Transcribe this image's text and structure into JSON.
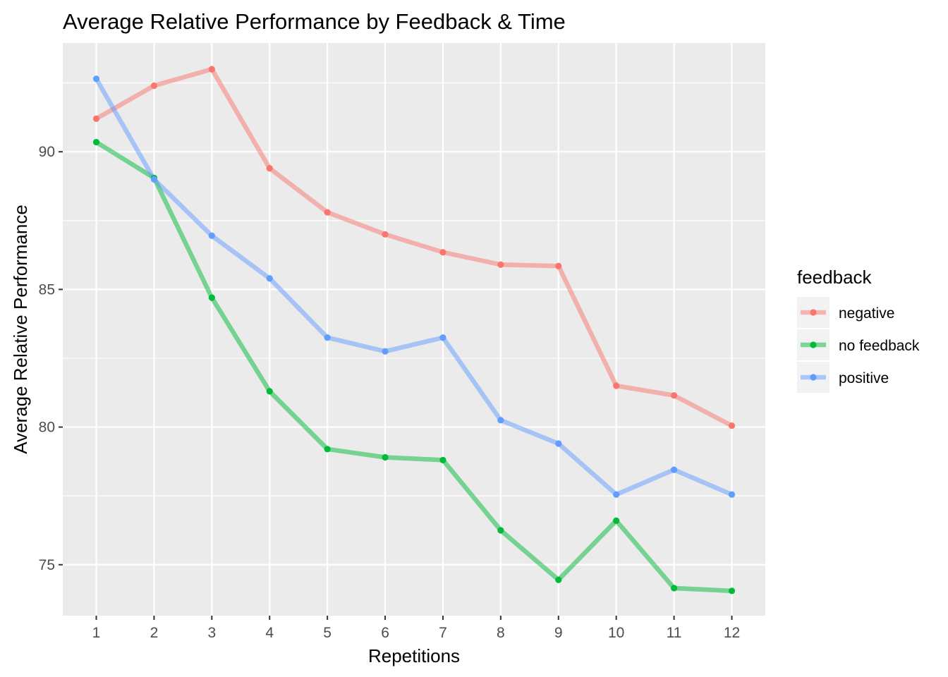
{
  "chart_data": {
    "type": "line",
    "title": "Average Relative Performance by Feedback & Time",
    "xlabel": "Repetitions",
    "ylabel": "Average Relative Performance",
    "x": [
      1,
      2,
      3,
      4,
      5,
      6,
      7,
      8,
      9,
      10,
      11,
      12
    ],
    "x_tick_labels": [
      "1",
      "2",
      "3",
      "4",
      "5",
      "6",
      "7",
      "8",
      "9",
      "10",
      "11",
      "12"
    ],
    "xlim": [
      0.42,
      12.58
    ],
    "ylim": [
      73.15,
      93.95
    ],
    "y_ticks": [
      75,
      80,
      85,
      90
    ],
    "y_tick_labels": [
      "75",
      "80",
      "85",
      "90"
    ],
    "grid": true,
    "legend": {
      "title": "feedback",
      "position": "right"
    },
    "series": [
      {
        "name": "negative",
        "color": "#F8766D",
        "values": [
          91.2,
          92.4,
          93.0,
          89.4,
          87.8,
          87.0,
          86.35,
          85.9,
          85.85,
          81.5,
          81.15,
          80.05
        ]
      },
      {
        "name": "no feedback",
        "color": "#00BA38",
        "values": [
          90.35,
          89.05,
          84.7,
          81.3,
          79.2,
          78.9,
          78.8,
          76.25,
          74.45,
          76.6,
          74.15,
          74.05
        ]
      },
      {
        "name": "positive",
        "color": "#619CFF",
        "values": [
          92.65,
          89.0,
          86.95,
          85.4,
          83.25,
          82.75,
          83.25,
          80.25,
          79.4,
          77.55,
          78.45,
          77.55
        ]
      }
    ]
  }
}
